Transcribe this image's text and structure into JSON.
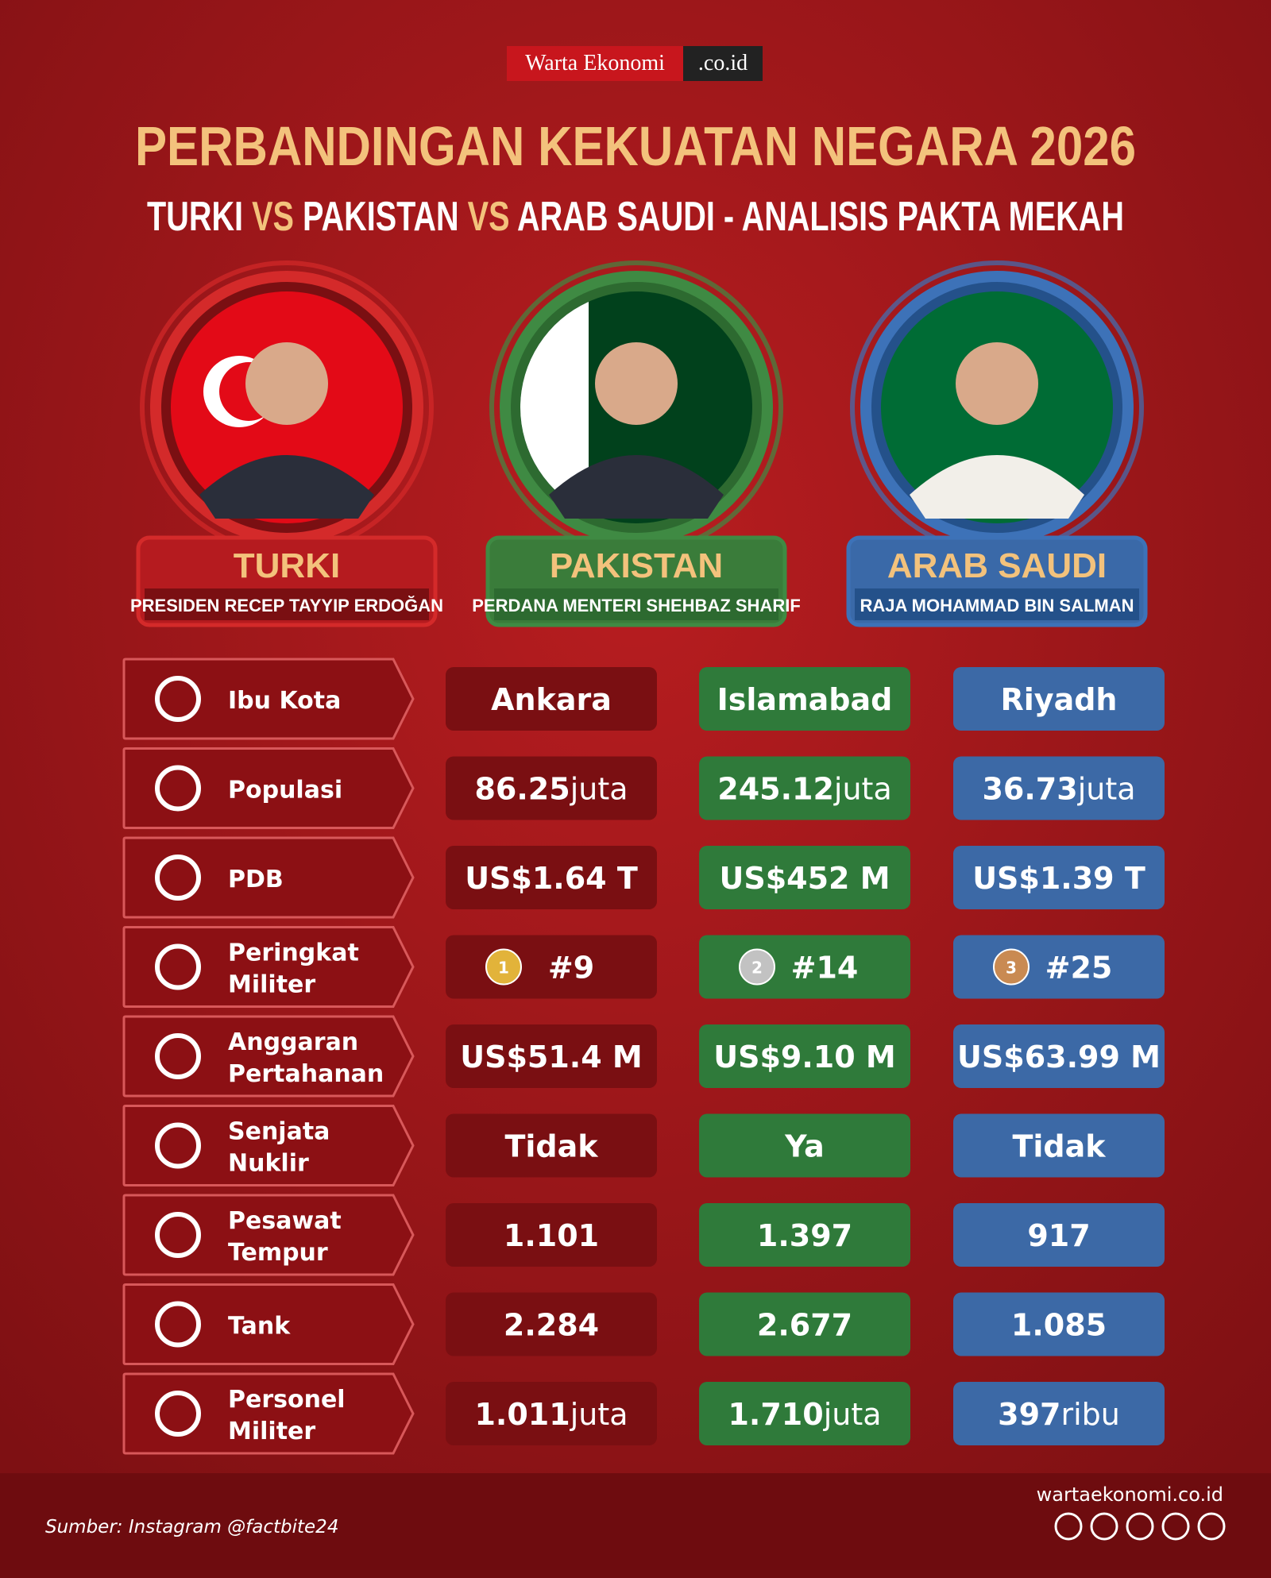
{
  "logo": {
    "left": "Warta Ekonomi",
    "right": ".co.id"
  },
  "title": "PERBANDINGAN KEKUATAN NEGARA 2026",
  "subtitle": [
    "TURKI ",
    "VS",
    " PAKISTAN ",
    "VS",
    " ARAB SAUDI - ANALISIS PAKTA MEKAH"
  ],
  "countries": [
    {
      "name": "TURKI",
      "leader": "PRESIDEN RECEP TAYYIP ERDOĞAN"
    },
    {
      "name": "PAKISTAN",
      "leader": "PERDANA MENTERI SHEHBAZ SHARIF"
    },
    {
      "name": "ARAB SAUDI",
      "leader": "RAJA MOHAMMAD BIN SALMAN"
    }
  ],
  "rows": [
    {
      "label": [
        "Ibu Kota"
      ],
      "cells": [
        {
          "main": "Ankara"
        },
        {
          "main": "Islamabad"
        },
        {
          "main": "Riyadh"
        }
      ]
    },
    {
      "label": [
        "Populasi"
      ],
      "cells": [
        {
          "main": "86.25",
          "unit": "juta"
        },
        {
          "main": "245.12",
          "unit": "juta"
        },
        {
          "main": "36.73",
          "unit": "juta"
        }
      ]
    },
    {
      "label": [
        "PDB"
      ],
      "cells": [
        {
          "main": "US$1.64 T"
        },
        {
          "main": "US$452 M"
        },
        {
          "main": "US$1.39 T"
        }
      ]
    },
    {
      "label": [
        "Peringkat",
        "Militer"
      ],
      "cells": [
        {
          "medal": "1",
          "main": "#9"
        },
        {
          "medal": "2",
          "main": "#14"
        },
        {
          "medal": "3",
          "main": "#25"
        }
      ]
    },
    {
      "label": [
        "Anggaran",
        "Pertahanan"
      ],
      "cells": [
        {
          "main": "US$51.4 M"
        },
        {
          "main": "US$9.10 M"
        },
        {
          "main": "US$63.99 M"
        }
      ]
    },
    {
      "label": [
        "Senjata",
        "Nuklir"
      ],
      "cells": [
        {
          "main": "Tidak"
        },
        {
          "main": "Ya"
        },
        {
          "main": "Tidak"
        }
      ]
    },
    {
      "label": [
        "Pesawat",
        "Tempur"
      ],
      "cells": [
        {
          "main": "1.101"
        },
        {
          "main": "1.397"
        },
        {
          "main": "917"
        }
      ]
    },
    {
      "label": [
        "Tank"
      ],
      "cells": [
        {
          "main": "2.284"
        },
        {
          "main": "2.677"
        },
        {
          "main": "1.085"
        }
      ]
    },
    {
      "label": [
        "Personel",
        "Militer"
      ],
      "cells": [
        {
          "main": "1.011",
          "unit": "juta"
        },
        {
          "main": "1.710",
          "unit": "juta"
        },
        {
          "main": "397",
          "unit": "ribu"
        }
      ]
    }
  ],
  "footer": {
    "source": "Sumber: Instagram @factbite24",
    "website": "wartaekonomi.co.id"
  }
}
